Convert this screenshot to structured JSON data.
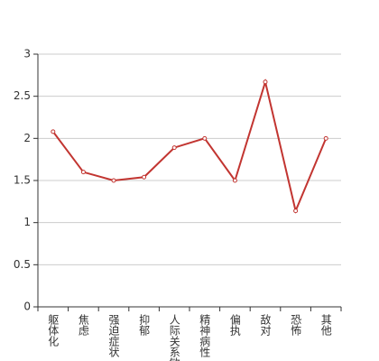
{
  "chart_data": {
    "type": "line",
    "categories": [
      "躯体化",
      "焦虑",
      "强迫症状",
      "抑郁",
      "人际关系敏感",
      "精神病性",
      "偏执",
      "敌对",
      "恐怖",
      "其他"
    ],
    "series": [
      {
        "color": "#c23531",
        "values": [
          2.08,
          1.6,
          1.5,
          1.54,
          1.89,
          2.0,
          1.5,
          2.67,
          1.14,
          2.0
        ]
      }
    ],
    "ylim": [
      0,
      3
    ],
    "yticks": [
      0,
      0.5,
      1,
      1.5,
      2,
      2.5,
      3
    ],
    "grid": true
  }
}
